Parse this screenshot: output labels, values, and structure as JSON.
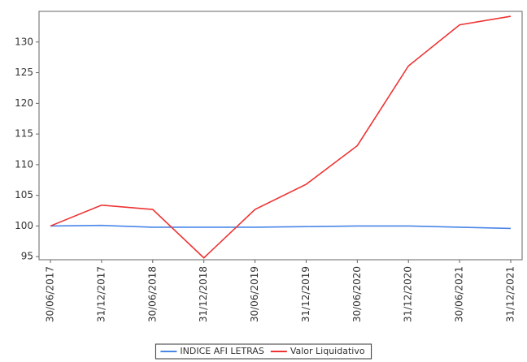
{
  "chart_data": {
    "type": "line",
    "categories": [
      "30/06/2017",
      "31/12/2017",
      "30/06/2018",
      "31/12/2018",
      "30/06/2019",
      "31/12/2019",
      "30/06/2020",
      "31/12/2020",
      "30/06/2021",
      "31/12/2021"
    ],
    "series": [
      {
        "name": "INDICE AFI LETRAS",
        "color": "#4a86e8",
        "values": [
          100,
          100.1,
          99.8,
          99.8,
          99.8,
          99.9,
          100,
          100,
          99.8,
          99.6
        ]
      },
      {
        "name": "Valor Liquidativo",
        "color": "#ee3333",
        "values": [
          100,
          103.4,
          102.7,
          94.8,
          102.7,
          106.8,
          113.1,
          126.1,
          132.8,
          134.2
        ]
      }
    ],
    "ylim": [
      94.5,
      135
    ],
    "yticks": [
      95,
      100,
      105,
      110,
      115,
      120,
      125,
      130
    ],
    "grid": false,
    "legend": "bottom"
  }
}
